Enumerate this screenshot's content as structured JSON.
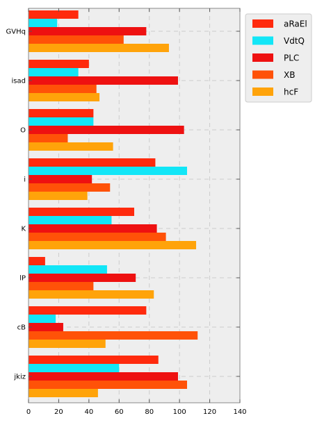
{
  "chart_data": {
    "type": "bar",
    "orientation": "horizontal",
    "categories": [
      "GVHq",
      "isad",
      "O",
      "i",
      "K",
      "lP",
      "cB",
      "jkiz"
    ],
    "series": [
      {
        "name": "aRaEl",
        "color": "#ff2a0d",
        "values": [
          33,
          40,
          43,
          84,
          70,
          11,
          78,
          86
        ]
      },
      {
        "name": "VdtQ",
        "color": "#12e6f7",
        "values": [
          19,
          33,
          43,
          105,
          55,
          52,
          18,
          60
        ]
      },
      {
        "name": "PLC",
        "color": "#ee1111",
        "values": [
          78,
          99,
          103,
          42,
          85,
          71,
          23,
          99
        ]
      },
      {
        "name": "XB",
        "color": "#ff5208",
        "values": [
          63,
          45,
          26,
          54,
          91,
          43,
          112,
          105
        ]
      },
      {
        "name": "hcF",
        "color": "#ffa30a",
        "values": [
          93,
          47,
          56,
          39,
          111,
          83,
          51,
          46
        ]
      }
    ],
    "xlim": [
      0,
      140
    ],
    "xticks": [
      0,
      20,
      40,
      60,
      80,
      100,
      120,
      140
    ],
    "grid": true,
    "legend_position": "top-right",
    "plot_background": "#eeeeee"
  }
}
